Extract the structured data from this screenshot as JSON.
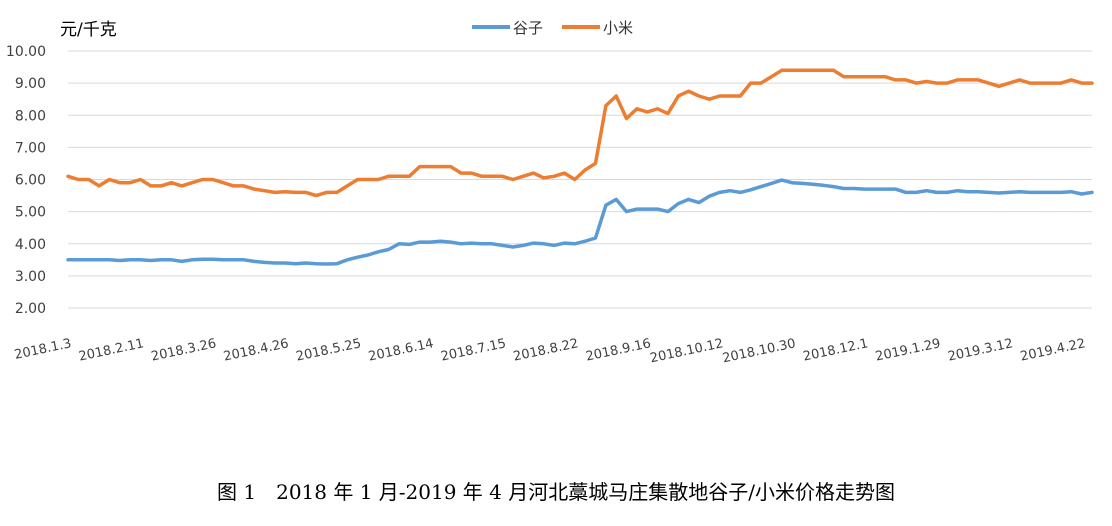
{
  "chart_data": {
    "type": "line",
    "ylabel": "元/千克",
    "ylim": [
      2.0,
      10.0
    ],
    "yticks": [
      "2.00",
      "3.00",
      "4.00",
      "5.00",
      "6.00",
      "7.00",
      "8.00",
      "9.00",
      "10.00"
    ],
    "x_tick_labels": [
      "2018.1.3",
      "2018.2.11",
      "2018.3.26",
      "2018.4.26",
      "2018.5.25",
      "2018.6.14",
      "2018.7.15",
      "2018.8.22",
      "2018.9.16",
      "2018.10.12",
      "2018.10.30",
      "2018.12.1",
      "2019.1.29",
      "2019.3.12",
      "2019.4.22"
    ],
    "legend_position": "top-center",
    "series": [
      {
        "name": "谷子",
        "color": "#5B9BD5",
        "values": [
          3.5,
          3.5,
          3.5,
          3.5,
          3.5,
          3.48,
          3.5,
          3.5,
          3.48,
          3.5,
          3.5,
          3.45,
          3.5,
          3.52,
          3.52,
          3.5,
          3.5,
          3.5,
          3.45,
          3.42,
          3.4,
          3.4,
          3.38,
          3.4,
          3.38,
          3.37,
          3.38,
          3.5,
          3.58,
          3.65,
          3.75,
          3.82,
          4.0,
          3.98,
          4.05,
          4.05,
          4.08,
          4.05,
          4.0,
          4.02,
          4.0,
          4.0,
          3.95,
          3.9,
          3.95,
          4.02,
          4.0,
          3.95,
          4.02,
          4.0,
          4.08,
          4.18,
          5.2,
          5.38,
          5.0,
          5.08,
          5.08,
          5.08,
          5.0,
          5.25,
          5.38,
          5.28,
          5.48,
          5.6,
          5.65,
          5.6,
          5.68,
          5.78,
          5.88,
          5.98,
          5.9,
          5.88,
          5.85,
          5.82,
          5.78,
          5.72,
          5.72,
          5.7,
          5.7,
          5.7,
          5.7,
          5.6,
          5.6,
          5.65,
          5.6,
          5.6,
          5.65,
          5.62,
          5.62,
          5.6,
          5.58,
          5.6,
          5.62,
          5.6,
          5.6,
          5.6,
          5.6,
          5.62,
          5.55,
          5.6
        ]
      },
      {
        "name": "小米",
        "color": "#ED7D31",
        "values": [
          6.1,
          6.0,
          6.0,
          5.8,
          6.0,
          5.9,
          5.9,
          6.0,
          5.8,
          5.8,
          5.9,
          5.8,
          5.9,
          6.0,
          6.0,
          5.9,
          5.8,
          5.8,
          5.7,
          5.65,
          5.6,
          5.62,
          5.6,
          5.6,
          5.5,
          5.6,
          5.6,
          5.8,
          6.0,
          6.0,
          6.0,
          6.1,
          6.1,
          6.1,
          6.4,
          6.4,
          6.4,
          6.4,
          6.2,
          6.2,
          6.1,
          6.1,
          6.1,
          6.0,
          6.1,
          6.2,
          6.05,
          6.1,
          6.2,
          6.0,
          6.3,
          6.5,
          8.3,
          8.6,
          7.9,
          8.2,
          8.1,
          8.2,
          8.05,
          8.6,
          8.75,
          8.6,
          8.5,
          8.6,
          8.6,
          8.6,
          9.0,
          9.0,
          9.2,
          9.4,
          9.4,
          9.4,
          9.4,
          9.4,
          9.4,
          9.2,
          9.2,
          9.2,
          9.2,
          9.2,
          9.1,
          9.1,
          9.0,
          9.05,
          9.0,
          9.0,
          9.1,
          9.1,
          9.1,
          9.0,
          8.9,
          9.0,
          9.1,
          9.0,
          9.0,
          9.0,
          9.0,
          9.1,
          9.0,
          9.0
        ]
      }
    ]
  },
  "caption": "图 1　2018 年 1 月-2019 年 4 月河北藁城马庄集散地谷子/小米价格走势图"
}
